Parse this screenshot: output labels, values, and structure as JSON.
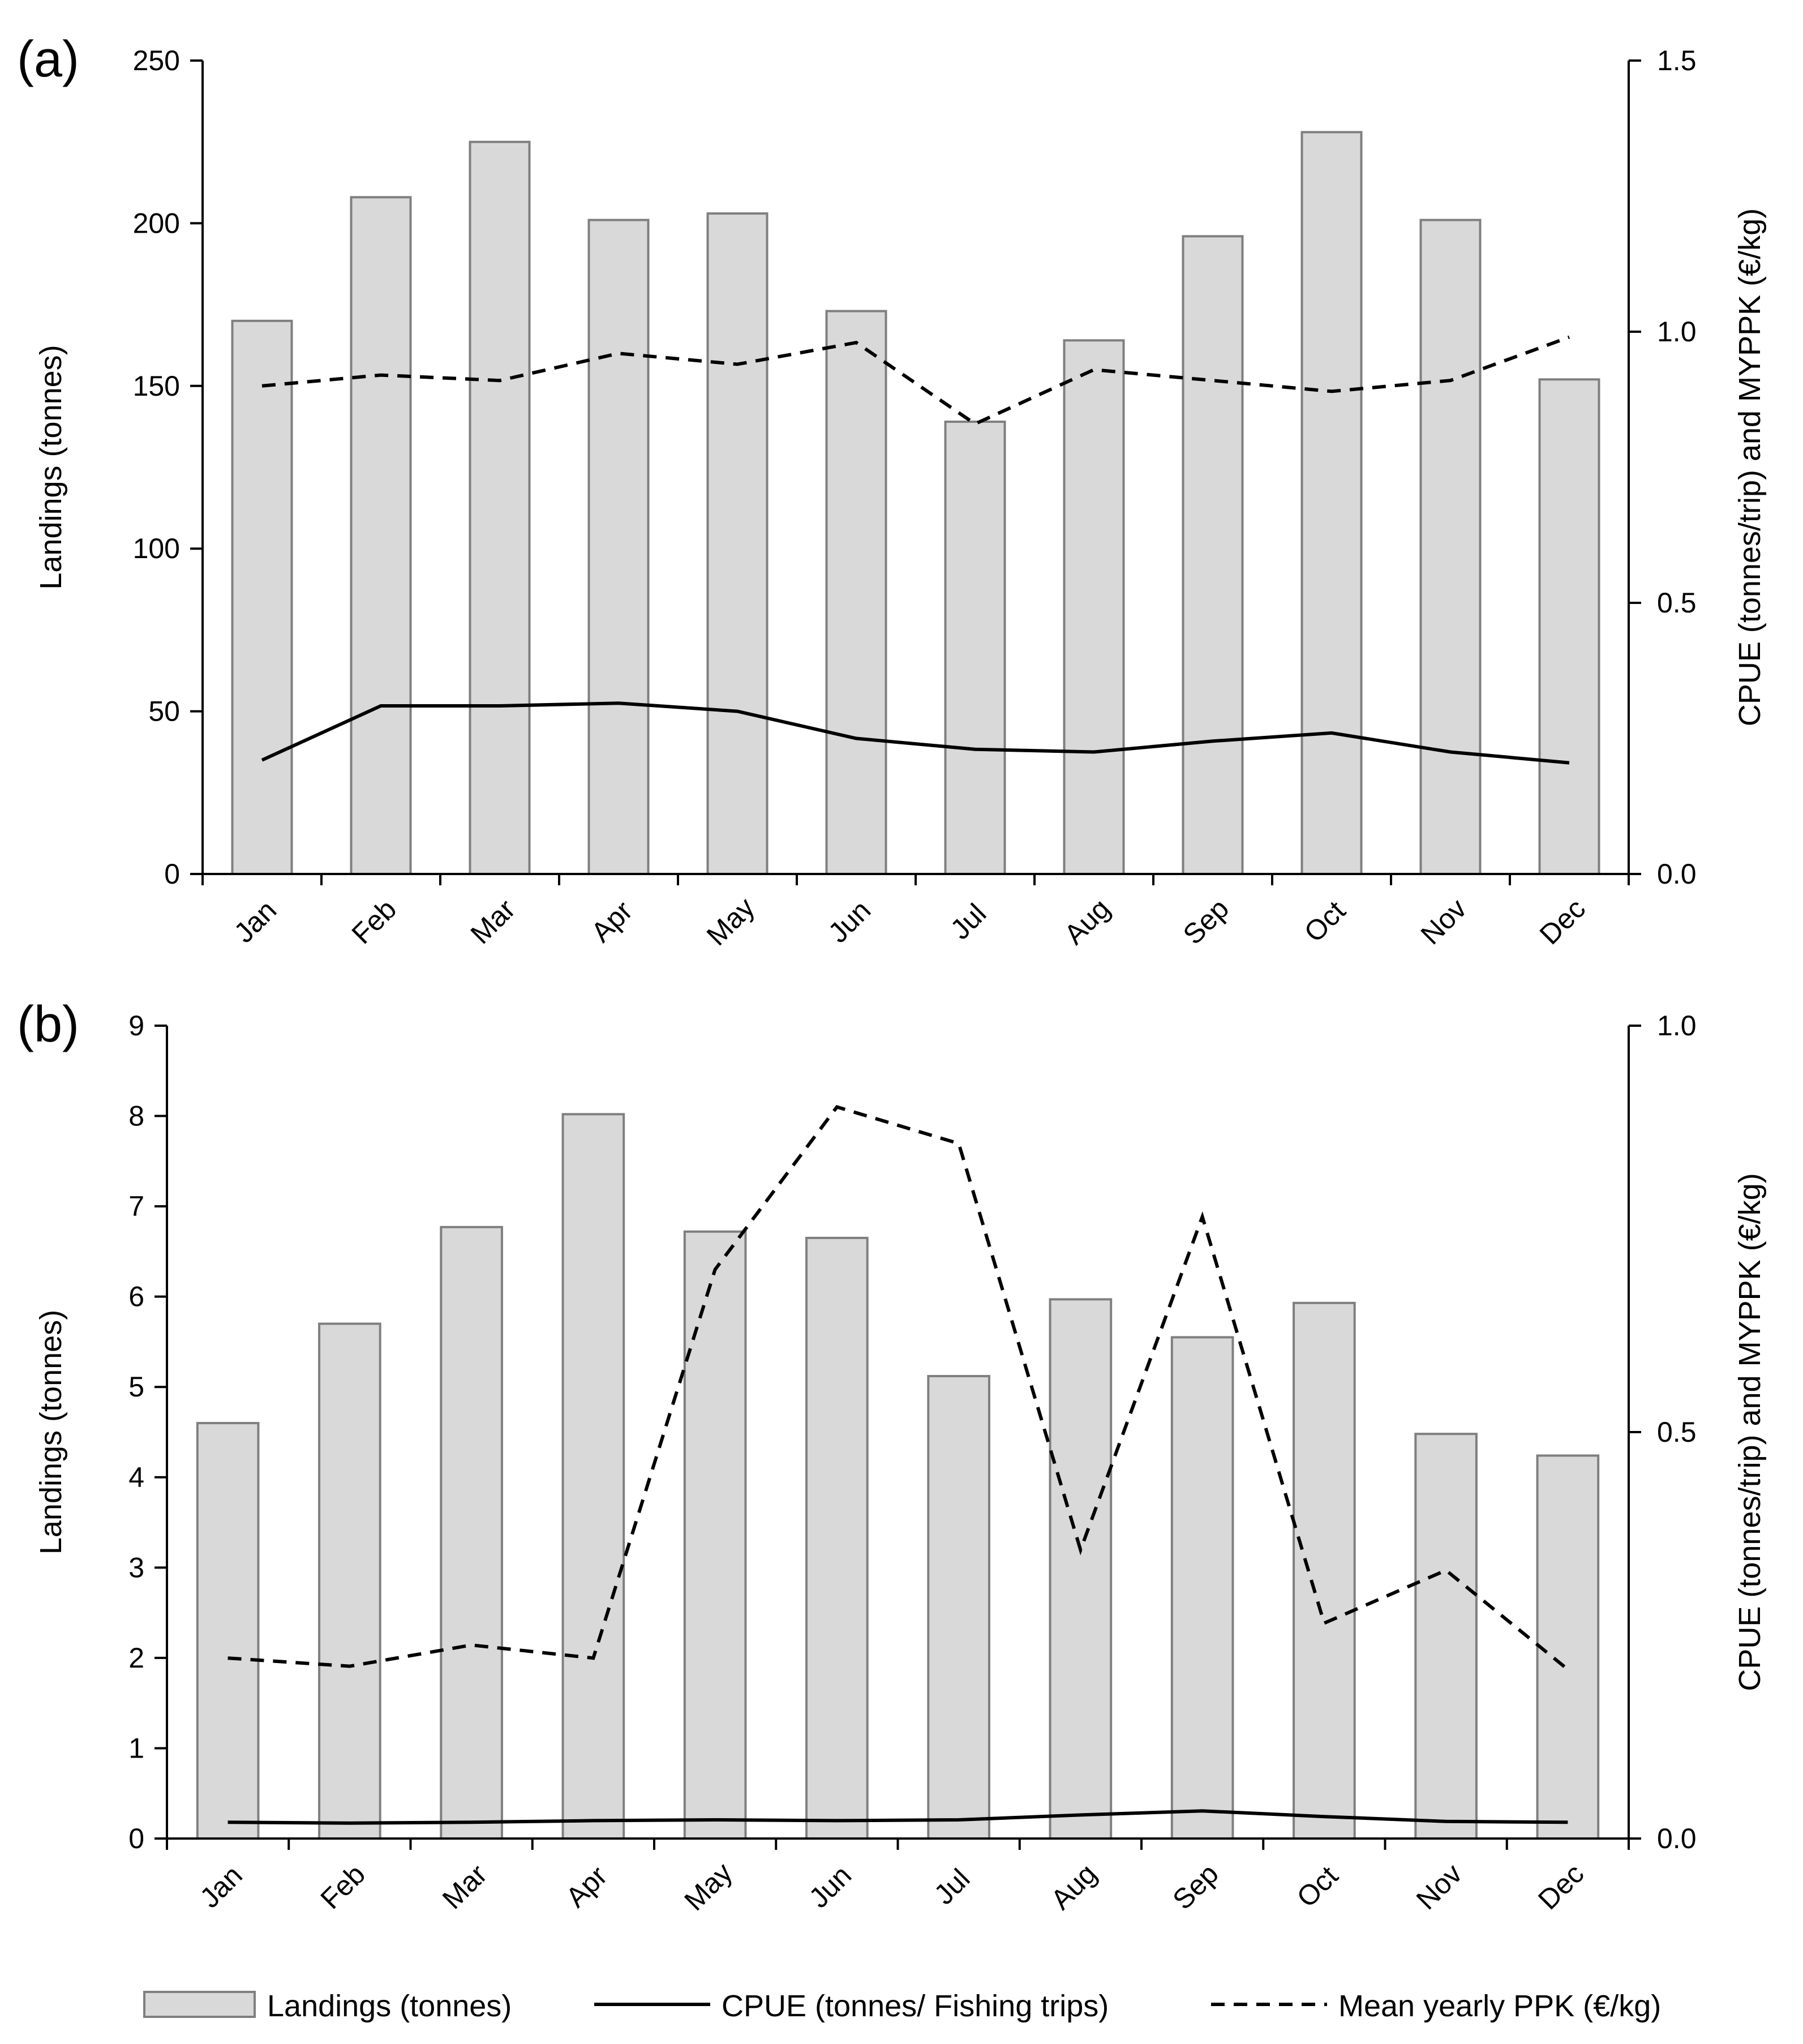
{
  "chart_data": [
    {
      "type": "bar",
      "panel_label": "(a)",
      "categories": [
        "Jan",
        "Feb",
        "Mar",
        "Apr",
        "May",
        "Jun",
        "Jul",
        "Aug",
        "Sep",
        "Oct",
        "Nov",
        "Dec"
      ],
      "ylabel": "Landings (tonnes)",
      "ylim": [
        0,
        250
      ],
      "yticks": [
        "0",
        "50",
        "100",
        "150",
        "200",
        "250"
      ],
      "y2label": "CPUE (tonnes/trip) and MYPPK (€/kg)",
      "y2lim": [
        0,
        1.5
      ],
      "y2ticks": [
        "0.0",
        "0.5",
        "1.0",
        "1.5"
      ],
      "series": [
        {
          "name": "Landings (tonnes)",
          "kind": "bar",
          "axis": "left",
          "values": [
            170,
            208,
            225,
            201,
            203,
            173,
            139,
            164,
            196,
            228,
            201,
            152
          ]
        },
        {
          "name": "CPUE (tonnes/ Fishing trips)",
          "kind": "line",
          "axis": "right",
          "values": [
            0.21,
            0.31,
            0.31,
            0.315,
            0.3,
            0.25,
            0.23,
            0.225,
            0.245,
            0.26,
            0.225,
            0.205
          ]
        },
        {
          "name": "Mean yearly PPK (€/kg)",
          "kind": "dashed",
          "axis": "right",
          "values": [
            0.9,
            0.92,
            0.91,
            0.96,
            0.94,
            0.98,
            0.83,
            0.93,
            0.91,
            0.89,
            0.91,
            0.99
          ]
        }
      ]
    },
    {
      "type": "bar",
      "panel_label": "(b)",
      "categories": [
        "Jan",
        "Feb",
        "Mar",
        "Apr",
        "May",
        "Jun",
        "Jul",
        "Aug",
        "Sep",
        "Oct",
        "Nov",
        "Dec"
      ],
      "ylabel": "Landings (tonnes)",
      "ylim": [
        0,
        9
      ],
      "yticks": [
        "0",
        "1",
        "2",
        "3",
        "4",
        "5",
        "6",
        "7",
        "8",
        "9"
      ],
      "y2label": "CPUE (tonnes/trip) and MYPPK (€/kg)",
      "y2lim": [
        0,
        1.0
      ],
      "y2ticks": [
        "0.0",
        "0.5",
        "1.0"
      ],
      "series": [
        {
          "name": "Landings (tonnes)",
          "kind": "bar",
          "axis": "left",
          "values": [
            4.6,
            5.7,
            6.77,
            8.02,
            6.72,
            6.65,
            5.12,
            5.97,
            5.55,
            5.93,
            4.48,
            4.24
          ]
        },
        {
          "name": "CPUE (tonnes/ Fishing trips)",
          "kind": "line",
          "axis": "right",
          "values": [
            0.02,
            0.019,
            0.02,
            0.022,
            0.023,
            0.022,
            0.023,
            0.029,
            0.034,
            0.027,
            0.021,
            0.02
          ]
        },
        {
          "name": "Mean yearly PPK (€/kg)",
          "kind": "dashed",
          "axis": "right",
          "values": [
            0.222,
            0.212,
            0.238,
            0.222,
            0.7,
            0.9,
            0.855,
            0.355,
            0.765,
            0.265,
            0.33,
            0.208
          ]
        }
      ]
    }
  ],
  "legend": [
    {
      "label": "Landings (tonnes)",
      "kind": "bar"
    },
    {
      "label": "CPUE (tonnes/ Fishing trips)",
      "kind": "line"
    },
    {
      "label": "Mean yearly PPK (€/kg)",
      "kind": "dashed"
    }
  ]
}
